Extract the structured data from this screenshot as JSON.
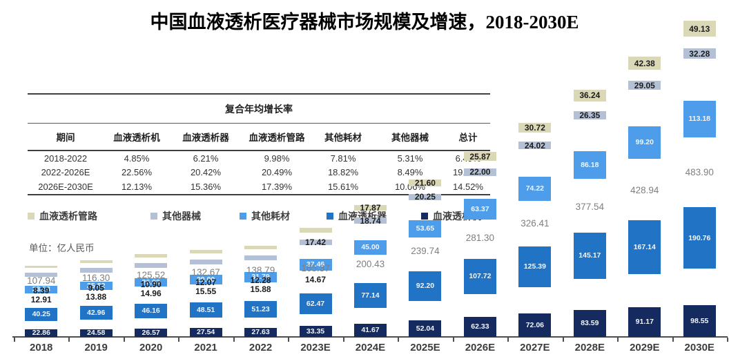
{
  "page": {
    "title": "中国血液透析医疗器械市场规模及增速，2018-2030E"
  },
  "cagr_table": {
    "title": "复合年均增长率",
    "columns": [
      "期间",
      "血液透析机",
      "血液透析器",
      "血液透析管路",
      "其他耗材",
      "其他器械",
      "总计"
    ],
    "rows": [
      [
        "2018-2022",
        "4.85%",
        "6.21%",
        "9.98%",
        "7.81%",
        "5.31%",
        "6.49%"
      ],
      [
        "2022-2026E",
        "22.56%",
        "20.42%",
        "20.49%",
        "18.82%",
        "8.49%",
        "19.32%"
      ],
      [
        "2026E-2030E",
        "12.13%",
        "15.36%",
        "17.39%",
        "15.61%",
        "10.06%",
        "14.52%"
      ]
    ]
  },
  "legend": {
    "items": [
      {
        "label": "血液透析管路",
        "color": "#DBD8B8"
      },
      {
        "label": "其他器械",
        "color": "#B3C0D6"
      },
      {
        "label": "其他耗材",
        "color": "#4E9DEA"
      },
      {
        "label": "血液透析器",
        "color": "#2173C6"
      },
      {
        "label": "血液透析机",
        "color": "#152A5E"
      }
    ]
  },
  "unit_label": "单位：亿人民币",
  "chart_data": {
    "type": "bar",
    "stacked": true,
    "title": "中国血液透析医疗器械市场规模及增速，2018-2030E",
    "unit": "亿人民币",
    "grid": false,
    "legend_position": "top-left",
    "ylim": [
      0,
      500
    ],
    "categories": [
      "2018",
      "2019",
      "2020",
      "2021",
      "2022",
      "2023E",
      "2024E",
      "2025E",
      "2026E",
      "2027E",
      "2028E",
      "2029E",
      "2030E"
    ],
    "series": [
      {
        "name": "血液透析机",
        "color": "#152A5E",
        "label_style": "white",
        "values": [
          22.86,
          24.58,
          26.57,
          27.54,
          27.63,
          33.35,
          41.67,
          52.04,
          62.33,
          72.06,
          83.59,
          91.17,
          98.55
        ]
      },
      {
        "name": "血液透析器",
        "color": "#2173C6",
        "label_style": "white",
        "values": [
          40.25,
          42.96,
          46.16,
          48.51,
          51.23,
          62.47,
          77.14,
          92.2,
          107.72,
          125.39,
          145.17,
          167.14,
          190.76
        ]
      },
      {
        "name": "其他耗材",
        "color": "#4E9DEA",
        "label_style": "white",
        "values": [
          23.53,
          25.82,
          26.93,
          29.0,
          31.79,
          37.46,
          45.0,
          53.65,
          63.37,
          74.22,
          86.18,
          99.2,
          113.18
        ]
      },
      {
        "name": "其他器械",
        "color": "#B3C0D6",
        "label_style": "black",
        "values": [
          12.91,
          13.88,
          14.96,
          15.55,
          15.88,
          17.42,
          18.74,
          20.25,
          22.0,
          24.02,
          26.35,
          29.05,
          32.28
        ]
      },
      {
        "name": "血液透析管路",
        "color": "#DBD8B8",
        "label_style": "black",
        "values": [
          8.39,
          9.05,
          10.9,
          12.07,
          12.28,
          14.67,
          17.87,
          21.6,
          25.87,
          30.72,
          36.24,
          42.38,
          49.13
        ]
      }
    ],
    "totals": [
      107.94,
      116.3,
      125.52,
      132.67,
      138.79,
      165.37,
      200.43,
      239.74,
      281.3,
      326.41,
      377.54,
      428.94,
      483.9
    ]
  }
}
